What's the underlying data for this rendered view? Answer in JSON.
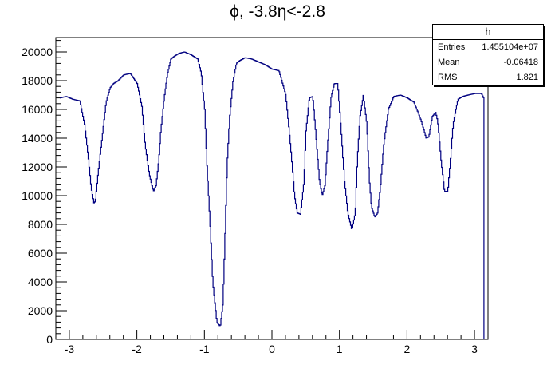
{
  "chart_data": {
    "type": "line",
    "title": "ϕ, -3.8η<-2.8",
    "xlabel": "",
    "ylabel": "",
    "xlim": [
      -3.2,
      3.2
    ],
    "ylim": [
      0,
      21000
    ],
    "xticks": [
      -3,
      -2,
      -1,
      0,
      1,
      2,
      3
    ],
    "yticks": [
      0,
      2000,
      4000,
      6000,
      8000,
      10000,
      12000,
      14000,
      16000,
      18000,
      20000
    ],
    "grid": false,
    "line_color": "#000080",
    "x": [
      -3.14,
      -3.05,
      -2.95,
      -2.85,
      -2.78,
      -2.72,
      -2.68,
      -2.64,
      -2.62,
      -2.58,
      -2.52,
      -2.46,
      -2.4,
      -2.35,
      -2.28,
      -2.2,
      -2.1,
      -2.0,
      -1.93,
      -1.88,
      -1.82,
      -1.76,
      -1.72,
      -1.68,
      -1.65,
      -1.6,
      -1.55,
      -1.5,
      -1.45,
      -1.38,
      -1.3,
      -1.2,
      -1.1,
      -1.05,
      -1.0,
      -0.97,
      -0.92,
      -0.88,
      -0.82,
      -0.77,
      -0.73,
      -0.7,
      -0.67,
      -0.63,
      -0.58,
      -0.53,
      -0.48,
      -0.44,
      -0.4,
      -0.3,
      -0.2,
      -0.1,
      0.0,
      0.1,
      0.2,
      0.28,
      0.33,
      0.37,
      0.42,
      0.47,
      0.5,
      0.55,
      0.6,
      0.65,
      0.7,
      0.74,
      0.78,
      0.82,
      0.87,
      0.92,
      0.97,
      1.02,
      1.07,
      1.12,
      1.18,
      1.23,
      1.26,
      1.3,
      1.35,
      1.4,
      1.44,
      1.47,
      1.52,
      1.56,
      1.6,
      1.65,
      1.72,
      1.8,
      1.9,
      2.0,
      2.1,
      2.2,
      2.28,
      2.32,
      2.37,
      2.42,
      2.45,
      2.5,
      2.55,
      2.6,
      2.63,
      2.68,
      2.75,
      2.82,
      2.9,
      3.0,
      3.1,
      3.14
    ],
    "values": [
      16800,
      16900,
      16700,
      16600,
      15000,
      12500,
      10500,
      9500,
      9600,
      11500,
      14000,
      16500,
      17500,
      17800,
      18000,
      18400,
      18500,
      17800,
      16200,
      13500,
      11500,
      10300,
      10700,
      12500,
      14500,
      16800,
      18500,
      19500,
      19700,
      19900,
      20000,
      19800,
      19500,
      18500,
      16000,
      12500,
      8000,
      4000,
      1200,
      900,
      2500,
      7000,
      12000,
      15500,
      18000,
      19200,
      19400,
      19500,
      19600,
      19500,
      19300,
      19100,
      18800,
      18700,
      17000,
      13000,
      10000,
      8800,
      8700,
      11000,
      14500,
      16800,
      16900,
      14000,
      11000,
      10000,
      10700,
      13500,
      16800,
      17800,
      17800,
      14500,
      11000,
      8800,
      7600,
      8800,
      12500,
      15500,
      17000,
      15000,
      11000,
      9200,
      8500,
      8800,
      10500,
      13500,
      16000,
      16900,
      17000,
      16800,
      16500,
      15300,
      14000,
      14100,
      15500,
      15800,
      15200,
      12500,
      10300,
      10300,
      12000,
      15000,
      16700,
      16900,
      17000,
      17100,
      17100,
      16700
    ]
  },
  "stats_box": {
    "title": "h",
    "rows": [
      {
        "key": "Entries",
        "value": "1.455104e+07"
      },
      {
        "key": "Mean",
        "value": "-0.06418"
      },
      {
        "key": "RMS",
        "value": "1.821"
      }
    ]
  }
}
